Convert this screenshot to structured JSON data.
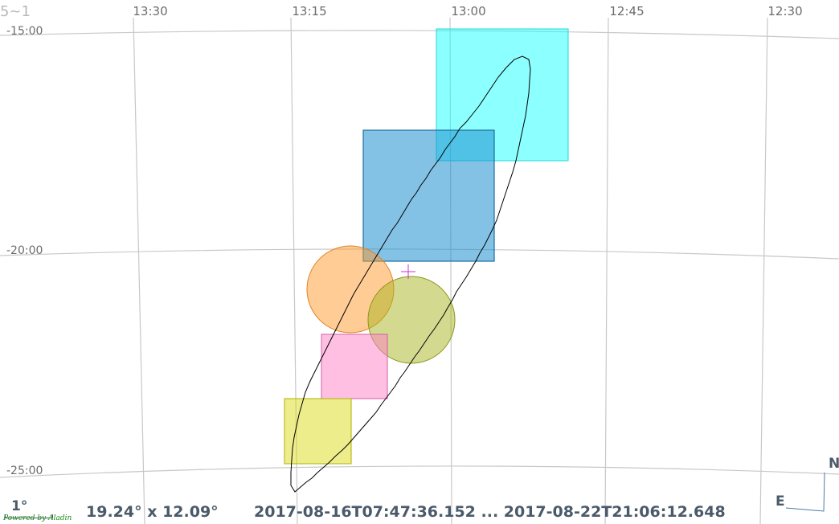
{
  "corner_label": "5~1",
  "ra_labels": [
    "13:30",
    "13:15",
    "13:00",
    "12:45",
    "12:30"
  ],
  "dec_labels": [
    "-15:00",
    "-20:00",
    "-25:00"
  ],
  "footer": {
    "scale_text": "1°",
    "powered_by": "Powered by Aladin",
    "fov": "19.24° x 12.09°",
    "time_range": "2017-08-16T07:47:36.152 ... 2017-08-22T21:06:12.648"
  },
  "compass": {
    "east": "E",
    "north": "N"
  },
  "colors": {
    "grid": "#c8c8c8",
    "footprint_cyan": "#00ffff",
    "footprint_blue": "#1e90d0",
    "circle_orange": "#ff9a2e",
    "circle_olive": "#a8b41e",
    "footprint_pink": "#ff80c8",
    "footprint_yellow": "#d8d800",
    "outline": "#000000",
    "crosshair": "#cc33cc"
  }
}
